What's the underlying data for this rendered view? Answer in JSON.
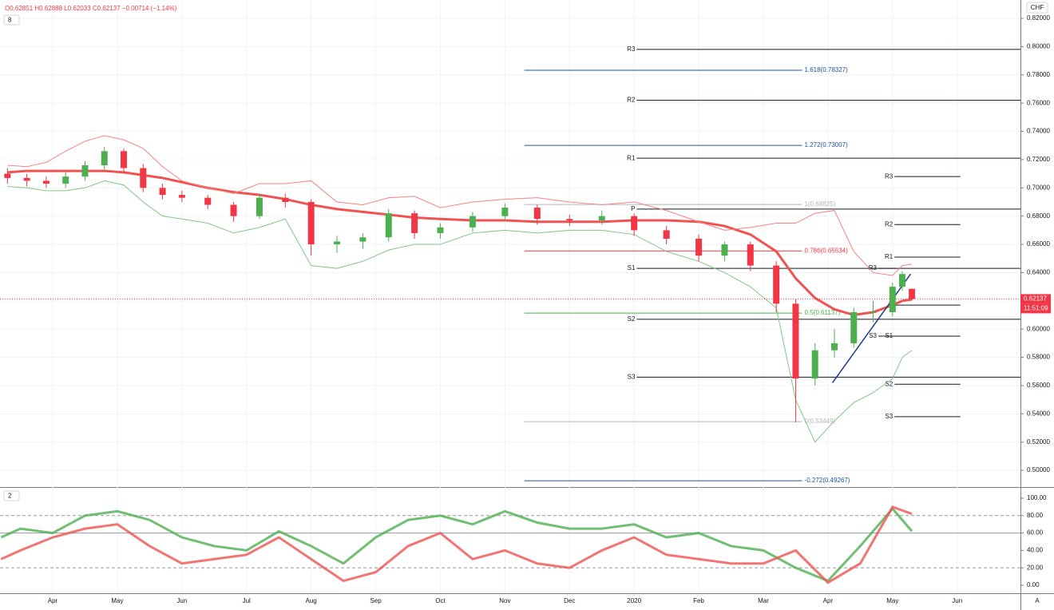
{
  "chart_data": [
    {
      "type": "candlestick",
      "legend_text": "O0.62851 H0.62888 L0.62033 C0.62137 −0.00714 (−1.14%)",
      "indicator_count": "8",
      "currency": "CHF",
      "last_price_label": "0.62137",
      "last_price": 0.62137,
      "countdown": "11:51:09",
      "corner_button": "A",
      "up_color": "#4caf50",
      "down_color": "#f23645",
      "xlim": [
        -0.816,
        14.98
      ],
      "xticks": [
        {
          "value": 0,
          "label": "Apr"
        },
        {
          "value": 1,
          "label": "May"
        },
        {
          "value": 2,
          "label": "Jun"
        },
        {
          "value": 3,
          "label": "Jul"
        },
        {
          "value": 4,
          "label": "Aug"
        },
        {
          "value": 5,
          "label": "Sep"
        },
        {
          "value": 6,
          "label": "Oct"
        },
        {
          "value": 7,
          "label": "Nov"
        },
        {
          "value": 8,
          "label": "Dec"
        },
        {
          "value": 9,
          "label": "2020"
        },
        {
          "value": 10,
          "label": "Feb"
        },
        {
          "value": 11,
          "label": "Mar"
        },
        {
          "value": 12,
          "label": "Apr"
        },
        {
          "value": 13,
          "label": "May"
        },
        {
          "value": 14,
          "label": "Jun"
        }
      ],
      "ylim": [
        0.4882,
        0.833
      ],
      "yticks": [
        {
          "value": 0.5,
          "label": "0.50000"
        },
        {
          "value": 0.52,
          "label": "0.52000"
        },
        {
          "value": 0.54,
          "label": "0.54000"
        },
        {
          "value": 0.56,
          "label": "0.56000"
        },
        {
          "value": 0.58,
          "label": "0.58000"
        },
        {
          "value": 0.6,
          "label": "0.60000"
        },
        {
          "value": 0.62,
          "label": "0.62000"
        },
        {
          "value": 0.64,
          "label": "0.64000"
        },
        {
          "value": 0.66,
          "label": "0.66000"
        },
        {
          "value": 0.68,
          "label": "0.68000"
        },
        {
          "value": 0.7,
          "label": "0.70000"
        },
        {
          "value": 0.72,
          "label": "0.72000"
        },
        {
          "value": 0.74,
          "label": "0.74000"
        },
        {
          "value": 0.76,
          "label": "0.76000"
        },
        {
          "value": 0.78,
          "label": "0.78000"
        },
        {
          "value": 0.8,
          "label": "0.80000"
        },
        {
          "value": 0.82,
          "label": "0.82000"
        }
      ],
      "grid": true,
      "x": [
        -0.7,
        -0.4,
        -0.1,
        0.2,
        0.5,
        0.8,
        1.1,
        1.4,
        1.7,
        2.0,
        2.4,
        2.8,
        3.2,
        3.6,
        4.0,
        4.4,
        4.8,
        5.2,
        5.6,
        6.0,
        6.5,
        7.0,
        7.5,
        8.0,
        8.5,
        9.0,
        9.5,
        10.0,
        10.4,
        10.8,
        11.2,
        11.5,
        11.8,
        12.1,
        12.4,
        12.7,
        13.0,
        13.15,
        13.3
      ],
      "open": [
        0.71,
        0.707,
        0.705,
        0.703,
        0.708,
        0.716,
        0.726,
        0.714,
        0.7,
        0.695,
        0.693,
        0.688,
        0.68,
        0.693,
        0.69,
        0.66,
        0.662,
        0.665,
        0.682,
        0.668,
        0.672,
        0.68,
        0.686,
        0.678,
        0.677,
        0.68,
        0.67,
        0.664,
        0.652,
        0.66,
        0.645,
        0.618,
        0.565,
        0.585,
        0.59,
        0.612,
        0.612,
        0.63,
        0.62851
      ],
      "high": [
        0.714,
        0.71,
        0.708,
        0.711,
        0.719,
        0.729,
        0.728,
        0.717,
        0.703,
        0.698,
        0.695,
        0.69,
        0.696,
        0.696,
        0.692,
        0.666,
        0.668,
        0.685,
        0.684,
        0.675,
        0.683,
        0.689,
        0.688,
        0.681,
        0.684,
        0.682,
        0.673,
        0.667,
        0.662,
        0.662,
        0.648,
        0.621,
        0.59,
        0.6,
        0.615,
        0.62,
        0.633,
        0.641,
        0.62888
      ],
      "low": [
        0.703,
        0.701,
        0.7,
        0.7,
        0.705,
        0.713,
        0.71,
        0.697,
        0.692,
        0.69,
        0.685,
        0.676,
        0.678,
        0.686,
        0.652,
        0.654,
        0.657,
        0.662,
        0.664,
        0.664,
        0.669,
        0.677,
        0.674,
        0.673,
        0.674,
        0.666,
        0.66,
        0.648,
        0.648,
        0.641,
        0.612,
        0.534,
        0.56,
        0.58,
        0.587,
        0.605,
        0.609,
        0.627,
        0.62033
      ],
      "close": [
        0.707,
        0.705,
        0.703,
        0.708,
        0.716,
        0.726,
        0.714,
        0.7,
        0.695,
        0.693,
        0.688,
        0.68,
        0.693,
        0.69,
        0.66,
        0.662,
        0.665,
        0.682,
        0.668,
        0.672,
        0.68,
        0.686,
        0.678,
        0.677,
        0.68,
        0.67,
        0.664,
        0.652,
        0.66,
        0.645,
        0.618,
        0.565,
        0.585,
        0.59,
        0.612,
        0.612,
        0.63,
        0.639,
        0.62137
      ],
      "overlays": [
        {
          "color": "#ef5350",
          "width": 3,
          "values": [
            0.711,
            0.712,
            0.712,
            0.712,
            0.712,
            0.712,
            0.711,
            0.709,
            0.707,
            0.704,
            0.7,
            0.697,
            0.695,
            0.692,
            0.688,
            0.685,
            0.683,
            0.681,
            0.679,
            0.678,
            0.677,
            0.677,
            0.676,
            0.676,
            0.676,
            0.677,
            0.677,
            0.676,
            0.673,
            0.667,
            0.655,
            0.636,
            0.622,
            0.614,
            0.61,
            0.612,
            0.617,
            0.62,
            0.621
          ]
        },
        {
          "color": "#f7837f",
          "width": 1,
          "values": [
            0.716,
            0.715,
            0.718,
            0.726,
            0.733,
            0.737,
            0.734,
            0.728,
            0.715,
            0.705,
            0.7,
            0.696,
            0.703,
            0.703,
            0.705,
            0.69,
            0.688,
            0.693,
            0.694,
            0.686,
            0.69,
            0.692,
            0.693,
            0.69,
            0.688,
            0.69,
            0.684,
            0.676,
            0.67,
            0.672,
            0.675,
            0.675,
            0.682,
            0.684,
            0.655,
            0.64,
            0.638,
            0.645,
            0.646
          ]
        },
        {
          "color": "#81c784",
          "width": 1,
          "values": [
            0.701,
            0.7,
            0.698,
            0.698,
            0.7,
            0.705,
            0.702,
            0.69,
            0.68,
            0.678,
            0.675,
            0.668,
            0.672,
            0.678,
            0.645,
            0.643,
            0.648,
            0.656,
            0.66,
            0.66,
            0.668,
            0.67,
            0.668,
            0.67,
            0.67,
            0.667,
            0.655,
            0.648,
            0.64,
            0.63,
            0.615,
            0.55,
            0.52,
            0.535,
            0.548,
            0.555,
            0.565,
            0.58,
            0.585
          ]
        }
      ],
      "pivot_sets": [
        {
          "x0": 9.04,
          "x1": 14.98,
          "levels": [
            {
              "label": "R3",
              "value": 0.798
            },
            {
              "label": "R2",
              "value": 0.762
            },
            {
              "label": "R1",
              "value": 0.721
            },
            {
              "label": "P",
              "value": 0.685
            },
            {
              "label": "S1",
              "value": 0.643
            },
            {
              "label": "S2",
              "value": 0.607
            },
            {
              "label": "S3",
              "value": 0.566
            }
          ]
        },
        {
          "x0": 13.03,
          "x1": 14.05,
          "levels": [
            {
              "label": "R3",
              "value": 0.708
            },
            {
              "label": "R2",
              "value": 0.674
            },
            {
              "label": "R1",
              "value": 0.651
            },
            {
              "label": "P",
              "value": 0.617
            },
            {
              "label": "S1",
              "value": 0.595
            },
            {
              "label": "S2",
              "value": 0.561
            },
            {
              "label": "S3",
              "value": 0.538
            }
          ]
        },
        {
          "x0": 12.78,
          "x1": 13.05,
          "levels": [
            {
              "label": "R3",
              "value": 0.643
            },
            {
              "label": "S3",
              "value": 0.595
            }
          ]
        }
      ],
      "fib_x": [
        7.3,
        11.6
      ],
      "fib_levels": [
        {
          "label": "1.618(0.78327)",
          "value": 0.78327,
          "color": "#1e53a5"
        },
        {
          "label": "1.272(0.73007)",
          "value": 0.73007,
          "color": "#1e53a5"
        },
        {
          "label": "1(0.68825)",
          "value": 0.68825,
          "color": "#b2b5be"
        },
        {
          "label": "0.786(0.65534)",
          "value": 0.65534,
          "color": "#f23645"
        },
        {
          "label": "0.5(0.61137)",
          "value": 0.61137,
          "color": "#4caf50"
        },
        {
          "label": "0(0.53449)",
          "value": 0.53449,
          "color": "#b2b5be"
        },
        {
          "label": "-0.272(0.49267)",
          "value": 0.49267,
          "color": "#1e53a5"
        }
      ],
      "trendline": {
        "x": [
          12.07,
          13.28
        ],
        "y": [
          0.562,
          0.639
        ],
        "color": "#1e3a8a"
      }
    },
    {
      "type": "line",
      "indicator_count": "2",
      "xlim": [
        -0.816,
        14.98
      ],
      "ylim": [
        -9.2,
        111
      ],
      "yticks": [
        {
          "value": 0,
          "label": "0.00"
        },
        {
          "value": 20,
          "label": "20.00"
        },
        {
          "value": 40,
          "label": "40.00"
        },
        {
          "value": 60,
          "label": "60.00"
        },
        {
          "value": 80,
          "label": "80.00"
        },
        {
          "value": 100,
          "label": "100.00"
        }
      ],
      "levels": [
        80,
        60,
        20
      ],
      "x": [
        -0.8,
        -0.5,
        0,
        0.5,
        1,
        1.5,
        2,
        2.5,
        3,
        3.5,
        4,
        4.5,
        5,
        5.5,
        6,
        6.5,
        7,
        7.5,
        8,
        8.5,
        9,
        9.5,
        10,
        10.5,
        11,
        11.5,
        12,
        12.5,
        13,
        13.3
      ],
      "series": [
        {
          "color": "#4caf50",
          "width": 3,
          "values": [
            55,
            65,
            60,
            80,
            85,
            75,
            55,
            45,
            40,
            62,
            45,
            25,
            55,
            75,
            80,
            70,
            85,
            72,
            65,
            65,
            70,
            55,
            60,
            45,
            40,
            20,
            5,
            45,
            88,
            62
          ]
        },
        {
          "color": "#ef5350",
          "width": 3,
          "values": [
            30,
            40,
            55,
            65,
            70,
            45,
            25,
            30,
            35,
            55,
            30,
            5,
            15,
            45,
            60,
            30,
            40,
            25,
            20,
            40,
            55,
            35,
            30,
            25,
            25,
            40,
            3,
            25,
            90,
            82
          ]
        }
      ]
    }
  ]
}
